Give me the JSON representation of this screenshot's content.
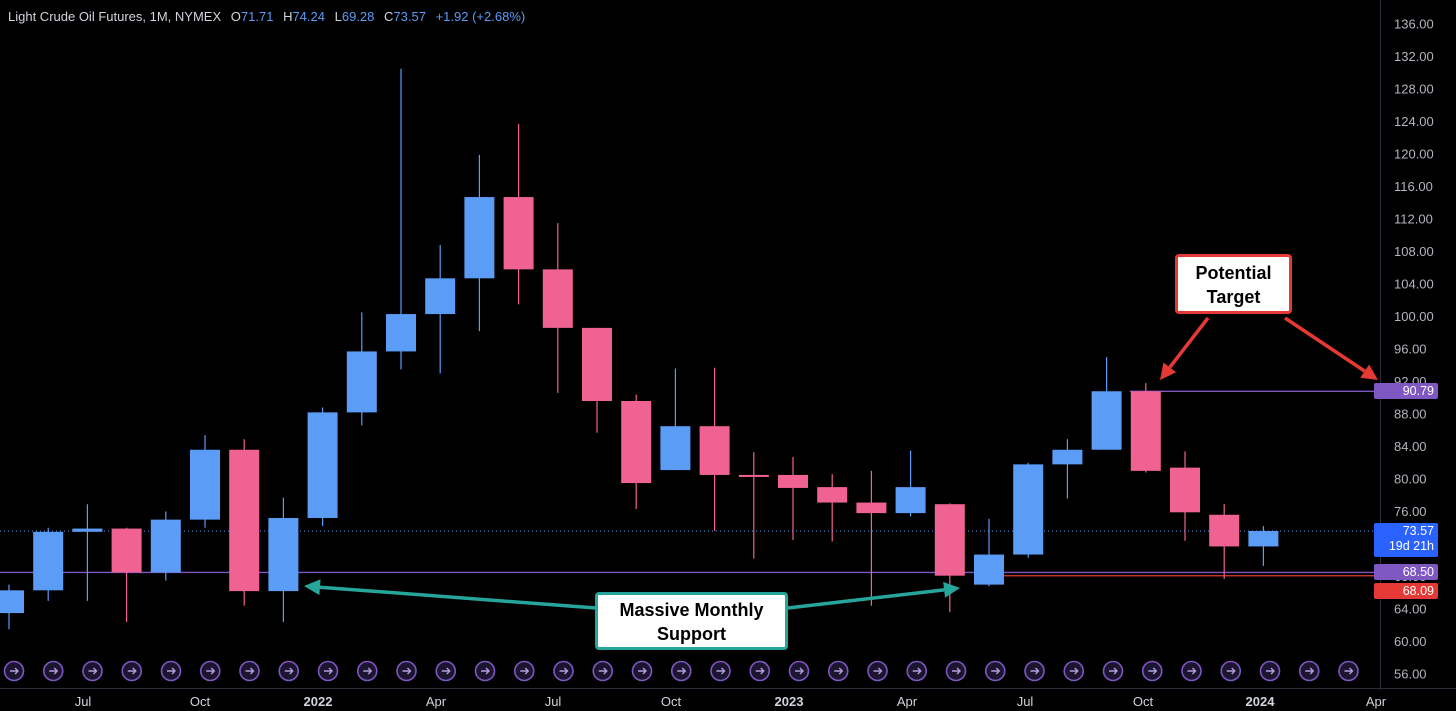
{
  "header": {
    "symbol": "Light Crude Oil Futures, 1M, NYMEX",
    "o_label": "O",
    "o": "71.71",
    "h_label": "H",
    "h": "74.24",
    "l_label": "L",
    "l": "69.28",
    "c_label": "C",
    "c": "73.57",
    "change": "+1.92 (+2.68%)"
  },
  "annotations": {
    "target_line1": "Potential",
    "target_line2": "Target",
    "support_line1": "Massive Monthly",
    "support_line2": "Support"
  },
  "price_labels": {
    "last": "73.57",
    "countdown": "19d 21h",
    "target_level": "90.79",
    "support_level": "68.50",
    "support_level2": "68.09"
  },
  "colors": {
    "background": "#000000",
    "up": "#5b9cf6",
    "down": "#f06292",
    "level_line": "#7e57c2",
    "red_line": "#e53935",
    "target_box_border": "#e53935",
    "support_box_border": "#26a69a",
    "event_icon": "#7e57c2"
  },
  "chart_data": {
    "type": "candlestick",
    "title": "Light Crude Oil Futures, 1M, NYMEX",
    "y_axis": {
      "min": 56,
      "max": 136,
      "ticks": [
        "56.00",
        "60.00",
        "64.00",
        "68.00",
        "72.00",
        "76.00",
        "80.00",
        "84.00",
        "88.00",
        "92.00",
        "96.00",
        "100.00",
        "104.00",
        "108.00",
        "112.00",
        "116.00",
        "120.00",
        "124.00",
        "128.00",
        "132.00",
        "136.00"
      ]
    },
    "x_axis": {
      "labels": [
        "Jul",
        "Oct",
        "2022",
        "Apr",
        "Jul",
        "Oct",
        "2023",
        "Apr",
        "Jul",
        "Oct",
        "2024",
        "Apr"
      ]
    },
    "candles": [
      {
        "m": "2021-05",
        "o": 63.5,
        "h": 67.0,
        "l": 61.5,
        "c": 66.3
      },
      {
        "m": "2021-06",
        "o": 66.3,
        "h": 74.0,
        "l": 65.0,
        "c": 73.5
      },
      {
        "m": "2021-07",
        "o": 73.5,
        "h": 76.9,
        "l": 65.0,
        "c": 73.9
      },
      {
        "m": "2021-08",
        "o": 73.9,
        "h": 74.0,
        "l": 62.4,
        "c": 68.5
      },
      {
        "m": "2021-09",
        "o": 68.5,
        "h": 76.0,
        "l": 67.5,
        "c": 75.0
      },
      {
        "m": "2021-10",
        "o": 75.0,
        "h": 85.4,
        "l": 74.0,
        "c": 83.6
      },
      {
        "m": "2021-11",
        "o": 83.6,
        "h": 84.9,
        "l": 64.4,
        "c": 66.2
      },
      {
        "m": "2021-12",
        "o": 66.2,
        "h": 77.7,
        "l": 62.4,
        "c": 75.2
      },
      {
        "m": "2022-01",
        "o": 75.2,
        "h": 88.8,
        "l": 74.2,
        "c": 88.2
      },
      {
        "m": "2022-02",
        "o": 88.2,
        "h": 100.5,
        "l": 86.6,
        "c": 95.7
      },
      {
        "m": "2022-03",
        "o": 95.7,
        "h": 130.5,
        "l": 93.5,
        "c": 100.3
      },
      {
        "m": "2022-04",
        "o": 100.3,
        "h": 108.8,
        "l": 93.0,
        "c": 104.7
      },
      {
        "m": "2022-05",
        "o": 104.7,
        "h": 119.9,
        "l": 98.2,
        "c": 114.7
      },
      {
        "m": "2022-06",
        "o": 114.7,
        "h": 123.7,
        "l": 101.5,
        "c": 105.8
      },
      {
        "m": "2022-07",
        "o": 105.8,
        "h": 111.5,
        "l": 90.6,
        "c": 98.6
      },
      {
        "m": "2022-08",
        "o": 98.6,
        "h": 98.6,
        "l": 85.7,
        "c": 89.6
      },
      {
        "m": "2022-09",
        "o": 89.6,
        "h": 90.4,
        "l": 76.3,
        "c": 79.5
      },
      {
        "m": "2022-10",
        "o": 81.1,
        "h": 93.6,
        "l": 81.1,
        "c": 86.5
      },
      {
        "m": "2022-11",
        "o": 86.5,
        "h": 93.7,
        "l": 73.6,
        "c": 80.5
      },
      {
        "m": "2022-12",
        "o": 80.5,
        "h": 83.3,
        "l": 70.2,
        "c": 80.3
      },
      {
        "m": "2023-01",
        "o": 80.5,
        "h": 82.7,
        "l": 72.5,
        "c": 78.9
      },
      {
        "m": "2023-02",
        "o": 79.0,
        "h": 80.6,
        "l": 72.3,
        "c": 77.1
      },
      {
        "m": "2023-03",
        "o": 77.1,
        "h": 81.0,
        "l": 64.4,
        "c": 75.8
      },
      {
        "m": "2023-04",
        "o": 75.8,
        "h": 83.5,
        "l": 75.4,
        "c": 79.0
      },
      {
        "m": "2023-05",
        "o": 76.9,
        "h": 77.0,
        "l": 63.6,
        "c": 68.1
      },
      {
        "m": "2023-06",
        "o": 67.0,
        "h": 75.1,
        "l": 66.8,
        "c": 70.7
      },
      {
        "m": "2023-07",
        "o": 70.7,
        "h": 82.0,
        "l": 70.3,
        "c": 81.8
      },
      {
        "m": "2023-08",
        "o": 81.8,
        "h": 84.9,
        "l": 77.6,
        "c": 83.6
      },
      {
        "m": "2023-09",
        "o": 83.6,
        "h": 95.0,
        "l": 83.6,
        "c": 90.8
      },
      {
        "m": "2023-10",
        "o": 90.8,
        "h": 91.8,
        "l": 80.8,
        "c": 81.0
      },
      {
        "m": "2023-11",
        "o": 81.4,
        "h": 83.4,
        "l": 72.4,
        "c": 75.9
      },
      {
        "m": "2023-12",
        "o": 75.6,
        "h": 76.9,
        "l": 67.7,
        "c": 71.7
      },
      {
        "m": "2024-01",
        "o": 71.7,
        "h": 74.2,
        "l": 69.3,
        "c": 73.6
      }
    ],
    "levels": [
      {
        "price": 90.79
      },
      {
        "price": 68.5
      },
      {
        "price": 68.09
      }
    ],
    "grid": false
  }
}
